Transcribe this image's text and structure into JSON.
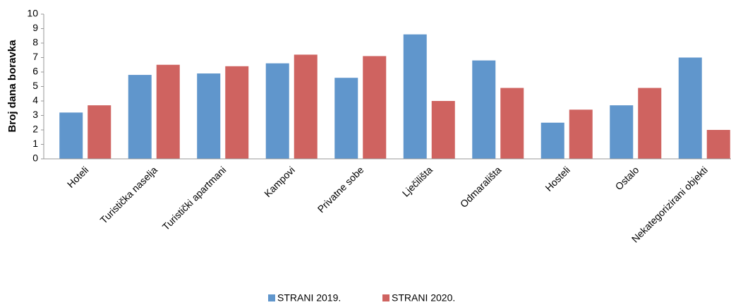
{
  "chart_data": {
    "type": "bar",
    "ylabel": "Broj dana boravka",
    "categories": [
      "Hoteli",
      "Turistička naselja",
      "Turistički apartmani",
      "Kampovi",
      "Privatne sobe",
      "Lječilišta",
      "Odmarališta",
      "Hosteli",
      "Ostalo",
      "Nekategorizirani objekti"
    ],
    "series": [
      {
        "name": "STRANI 2019.",
        "color": "#6096cc",
        "values": [
          3.2,
          5.8,
          5.9,
          6.6,
          5.6,
          8.6,
          6.8,
          2.5,
          3.7,
          7.0
        ]
      },
      {
        "name": "STRANI 2020.",
        "color": "#cf6360",
        "values": [
          3.7,
          6.5,
          6.4,
          7.2,
          7.1,
          4.0,
          4.9,
          3.4,
          4.9,
          2.0
        ]
      }
    ],
    "ylim": [
      0,
      10
    ],
    "yticks": [
      0,
      1,
      2,
      3,
      4,
      5,
      6,
      7,
      8,
      9,
      10
    ],
    "grid": false,
    "legend": "bottom"
  }
}
